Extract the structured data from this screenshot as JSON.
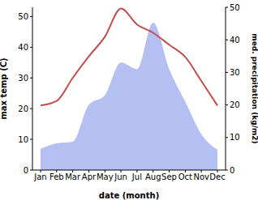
{
  "chart_data": {
    "type": "line",
    "x_label": "date (month)",
    "y_label": "max temp (C)",
    "y2_label": "med. precipitation (kg/m2)",
    "categories": [
      "Jan",
      "Feb",
      "Mar",
      "Apr",
      "May",
      "Jun",
      "Jul",
      "Aug",
      "Sep",
      "Oct",
      "Nov",
      "Dec"
    ],
    "series": [
      {
        "name": "max temp",
        "type": "line",
        "color": "#c0504d",
        "values": [
          21,
          22.5,
          30,
          37,
          43.4,
          52.6,
          47.4,
          44.7,
          40.8,
          36.8,
          29,
          21
        ]
      },
      {
        "name": "med. precipitation",
        "type": "area",
        "axis": "y2",
        "color": "#b4bff2",
        "values": [
          6.5,
          8.2,
          8.7,
          20,
          23,
          33,
          31,
          45.3,
          31,
          21,
          11,
          6.2
        ]
      }
    ],
    "ylim": [
      0,
      53
    ],
    "yticks": [
      0,
      10,
      20,
      30,
      40,
      50
    ],
    "y2lim": [
      0,
      50
    ],
    "y2ticks": [
      0,
      10,
      20,
      30,
      40,
      50
    ],
    "grid": false
  }
}
